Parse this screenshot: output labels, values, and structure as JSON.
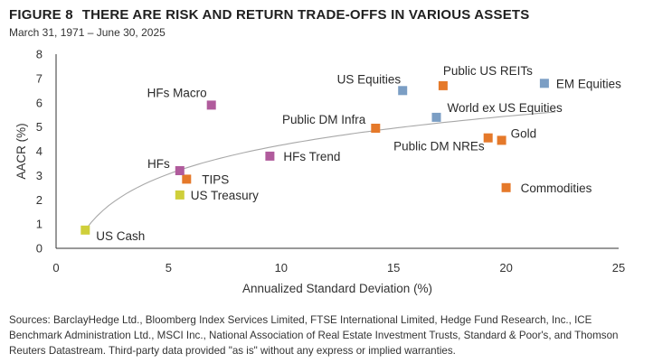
{
  "header": {
    "figure_label": "FIGURE 8",
    "title": "THERE ARE RISK AND RETURN TRADE-OFFS IN VARIOUS ASSETS",
    "subtitle": "March 31, 1971 – June 30, 2025"
  },
  "chart_data": {
    "type": "scatter",
    "xlabel": "Annualized Standard Deviation (%)",
    "ylabel": "AACR (%)",
    "xlim": [
      0,
      25
    ],
    "ylim": [
      0,
      8
    ],
    "x_ticks": [
      "0",
      "5",
      "10",
      "15",
      "20",
      "25"
    ],
    "y_ticks": [
      "0",
      "1",
      "2",
      "3",
      "4",
      "5",
      "6",
      "7",
      "8"
    ],
    "grid": false,
    "legend": "none",
    "colors": {
      "blue": "#7b9ec4",
      "orange": "#e5792a",
      "purple": "#b05b9c",
      "yellow": "#cfcf3a",
      "curve": "#a8a8a8"
    },
    "points": [
      {
        "label": "US Cash",
        "x": 1.3,
        "y": 0.75,
        "color": "yellow"
      },
      {
        "label": "US Treasury",
        "x": 5.5,
        "y": 2.2,
        "color": "yellow"
      },
      {
        "label": "TIPS",
        "x": 5.8,
        "y": 2.85,
        "color": "orange"
      },
      {
        "label": "HFs",
        "x": 5.5,
        "y": 3.2,
        "color": "purple"
      },
      {
        "label": "HFs Macro",
        "x": 6.9,
        "y": 5.9,
        "color": "purple"
      },
      {
        "label": "HFs Trend",
        "x": 9.5,
        "y": 3.8,
        "color": "purple"
      },
      {
        "label": "Public DM Infra",
        "x": 14.2,
        "y": 4.95,
        "color": "orange"
      },
      {
        "label": "US Equities",
        "x": 15.4,
        "y": 6.5,
        "color": "blue"
      },
      {
        "label": "Public US REITs",
        "x": 17.2,
        "y": 6.7,
        "color": "orange"
      },
      {
        "label": "World ex US Equities",
        "x": 16.9,
        "y": 5.4,
        "color": "blue"
      },
      {
        "label": "Public DM NREs",
        "x": 19.2,
        "y": 4.55,
        "color": "orange"
      },
      {
        "label": "Gold",
        "x": 19.8,
        "y": 4.45,
        "color": "orange"
      },
      {
        "label": "EM Equities",
        "x": 21.7,
        "y": 6.8,
        "color": "blue"
      },
      {
        "label": "Commodities",
        "x": 20.0,
        "y": 2.5,
        "color": "orange"
      }
    ]
  },
  "footer": {
    "sources": "Sources: BarclayHedge Ltd., Bloomberg Index Services Limited, FTSE International Limited, Hedge Fund Research, Inc., ICE Benchmark Administration Ltd., MSCI Inc., National Association of Real Estate Investment Trusts, Standard & Poor's, and Thomson Reuters Datastream. Third-party data provided \"as is\" without any express or implied warranties."
  }
}
